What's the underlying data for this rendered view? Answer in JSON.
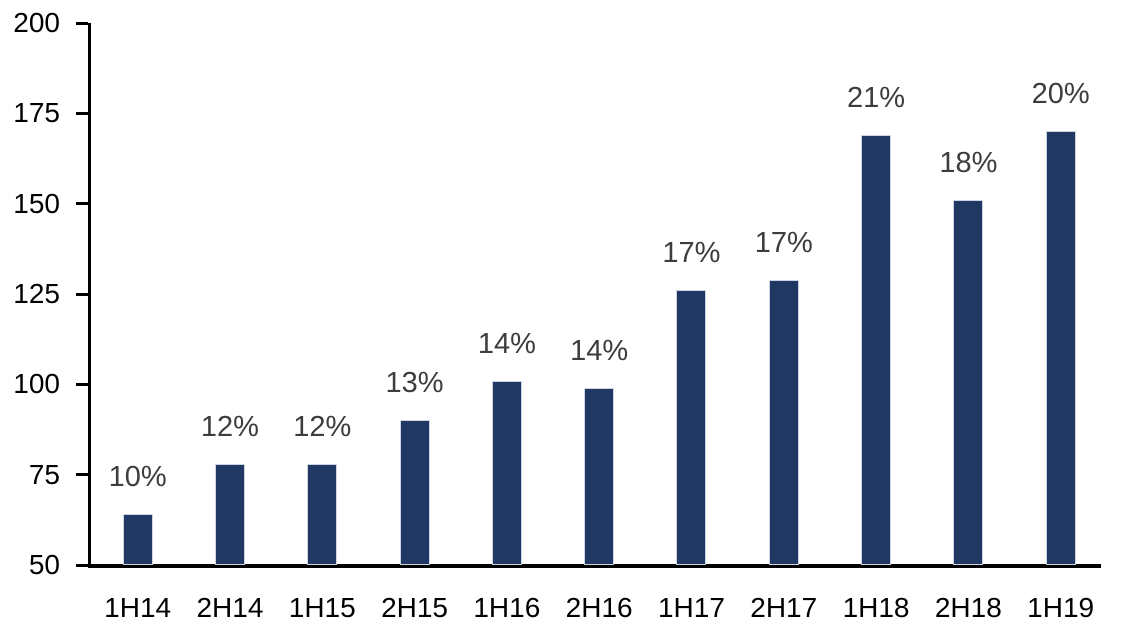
{
  "chart_data": {
    "type": "bar",
    "title": "",
    "xlabel": "",
    "ylabel": "",
    "categories": [
      "1H14",
      "2H14",
      "1H15",
      "2H15",
      "1H16",
      "2H16",
      "1H17",
      "2H17",
      "1H18",
      "2H18",
      "1H19"
    ],
    "values": [
      64,
      78,
      78,
      90,
      101,
      99,
      126,
      129,
      169,
      151,
      170
    ],
    "data_labels": [
      "10%",
      "12%",
      "12%",
      "13%",
      "14%",
      "14%",
      "17%",
      "17%",
      "21%",
      "18%",
      "20%"
    ],
    "ylim": [
      50,
      200
    ],
    "yticks": [
      "200",
      "175",
      "150",
      "125",
      "100",
      "75",
      "50"
    ],
    "ytick_values": [
      200,
      175,
      150,
      125,
      100,
      75,
      50
    ],
    "grid": false,
    "legend": false,
    "colors": {
      "bar_fill": "#1f3864",
      "bar_border": "#cdd5e3",
      "data_label": "#3d3d3d",
      "axis_line": "#000000",
      "tick_label": "#000000",
      "background": "#ffffff"
    }
  }
}
